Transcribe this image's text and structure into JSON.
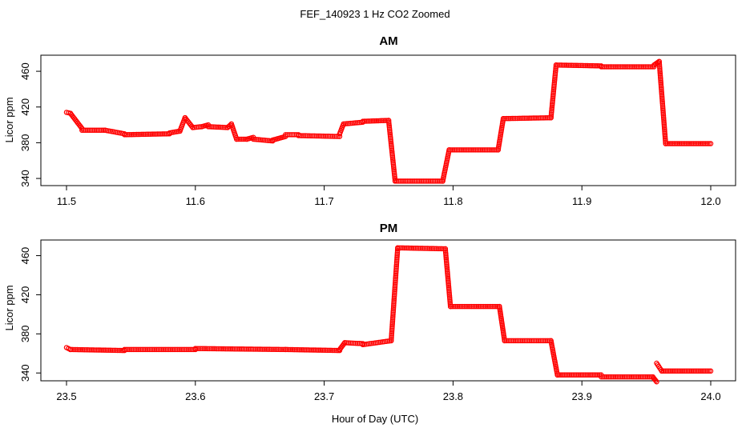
{
  "figure": {
    "title": "FEF_140923  1 Hz CO2 Zoomed",
    "xlabel": "Hour of Day (UTC)",
    "ylabel": "Licor ppm",
    "point_color": "#ff0000"
  },
  "chart_data": [
    {
      "type": "scatter",
      "title": "AM",
      "xlabel": "",
      "ylabel": "Licor ppm",
      "xlim": [
        11.5,
        12.0
      ],
      "ylim": [
        332,
        478
      ],
      "xticks": [
        "11.5",
        "11.6",
        "11.7",
        "11.8",
        "11.9",
        "12.0"
      ],
      "yticks": [
        "340",
        "380",
        "420",
        "460"
      ],
      "grid": false,
      "series": [
        {
          "color": "#ff0000",
          "segments": [
            {
              "x0": 11.5,
              "x1": 11.503,
              "y0": 414,
              "y1": 413
            },
            {
              "x0": 11.503,
              "x1": 11.512,
              "y0": 413,
              "y1": 396
            },
            {
              "x0": 11.512,
              "x1": 11.53,
              "y0": 394,
              "y1": 394
            },
            {
              "x0": 11.53,
              "x1": 11.545,
              "y0": 394,
              "y1": 390
            },
            {
              "x0": 11.545,
              "x1": 11.58,
              "y0": 389,
              "y1": 390
            },
            {
              "x0": 11.58,
              "x1": 11.588,
              "y0": 391,
              "y1": 393
            },
            {
              "x0": 11.588,
              "x1": 11.592,
              "y0": 393,
              "y1": 408
            },
            {
              "x0": 11.592,
              "x1": 11.598,
              "y0": 408,
              "y1": 397
            },
            {
              "x0": 11.598,
              "x1": 11.605,
              "y0": 397,
              "y1": 398
            },
            {
              "x0": 11.605,
              "x1": 11.61,
              "y0": 398,
              "y1": 400
            },
            {
              "x0": 11.61,
              "x1": 11.625,
              "y0": 398,
              "y1": 397
            },
            {
              "x0": 11.625,
              "x1": 11.628,
              "y0": 397,
              "y1": 401
            },
            {
              "x0": 11.628,
              "x1": 11.632,
              "y0": 401,
              "y1": 384
            },
            {
              "x0": 11.632,
              "x1": 11.64,
              "y0": 384,
              "y1": 384
            },
            {
              "x0": 11.64,
              "x1": 11.645,
              "y0": 384,
              "y1": 386
            },
            {
              "x0": 11.645,
              "x1": 11.66,
              "y0": 384,
              "y1": 382
            },
            {
              "x0": 11.66,
              "x1": 11.67,
              "y0": 383,
              "y1": 387
            },
            {
              "x0": 11.67,
              "x1": 11.68,
              "y0": 389,
              "y1": 389
            },
            {
              "x0": 11.68,
              "x1": 11.712,
              "y0": 388,
              "y1": 387
            },
            {
              "x0": 11.712,
              "x1": 11.715,
              "y0": 390,
              "y1": 401
            },
            {
              "x0": 11.715,
              "x1": 11.73,
              "y0": 401,
              "y1": 403
            },
            {
              "x0": 11.73,
              "x1": 11.75,
              "y0": 404,
              "y1": 405
            },
            {
              "x0": 11.75,
              "x1": 11.755,
              "y0": 405,
              "y1": 338
            },
            {
              "x0": 11.755,
              "x1": 11.792,
              "y0": 337,
              "y1": 337
            },
            {
              "x0": 11.792,
              "x1": 11.797,
              "y0": 337,
              "y1": 372
            },
            {
              "x0": 11.797,
              "x1": 11.835,
              "y0": 372,
              "y1": 372
            },
            {
              "x0": 11.835,
              "x1": 11.839,
              "y0": 372,
              "y1": 407
            },
            {
              "x0": 11.839,
              "x1": 11.876,
              "y0": 407,
              "y1": 408
            },
            {
              "x0": 11.876,
              "x1": 11.88,
              "y0": 408,
              "y1": 467
            },
            {
              "x0": 11.88,
              "x1": 11.915,
              "y0": 467,
              "y1": 466
            },
            {
              "x0": 11.915,
              "x1": 11.956,
              "y0": 465,
              "y1": 465
            },
            {
              "x0": 11.956,
              "x1": 11.96,
              "y0": 467,
              "y1": 471
            },
            {
              "x0": 11.96,
              "x1": 11.965,
              "y0": 471,
              "y1": 379
            },
            {
              "x0": 11.965,
              "x1": 12.0,
              "y0": 379,
              "y1": 379
            }
          ]
        }
      ]
    },
    {
      "type": "scatter",
      "title": "PM",
      "xlabel": "Hour of Day (UTC)",
      "ylabel": "Licor ppm",
      "xlim": [
        23.5,
        24.0
      ],
      "ylim": [
        332,
        476
      ],
      "xticks": [
        "23.5",
        "23.6",
        "23.7",
        "23.8",
        "23.9",
        "24.0"
      ],
      "yticks": [
        "340",
        "380",
        "420",
        "460"
      ],
      "grid": false,
      "series": [
        {
          "color": "#ff0000",
          "segments": [
            {
              "x0": 23.5,
              "x1": 23.503,
              "y0": 366,
              "y1": 364
            },
            {
              "x0": 23.503,
              "x1": 23.545,
              "y0": 364,
              "y1": 363
            },
            {
              "x0": 23.545,
              "x1": 23.6,
              "y0": 364,
              "y1": 364
            },
            {
              "x0": 23.6,
              "x1": 23.67,
              "y0": 365,
              "y1": 364
            },
            {
              "x0": 23.67,
              "x1": 23.712,
              "y0": 364,
              "y1": 363
            },
            {
              "x0": 23.712,
              "x1": 23.716,
              "y0": 364,
              "y1": 371
            },
            {
              "x0": 23.716,
              "x1": 23.73,
              "y0": 371,
              "y1": 370
            },
            {
              "x0": 23.73,
              "x1": 23.752,
              "y0": 369,
              "y1": 373
            },
            {
              "x0": 23.752,
              "x1": 23.757,
              "y0": 373,
              "y1": 467
            },
            {
              "x0": 23.757,
              "x1": 23.794,
              "y0": 468,
              "y1": 467
            },
            {
              "x0": 23.794,
              "x1": 23.798,
              "y0": 467,
              "y1": 408
            },
            {
              "x0": 23.798,
              "x1": 23.836,
              "y0": 408,
              "y1": 408
            },
            {
              "x0": 23.836,
              "x1": 23.84,
              "y0": 408,
              "y1": 373
            },
            {
              "x0": 23.84,
              "x1": 23.876,
              "y0": 373,
              "y1": 373
            },
            {
              "x0": 23.876,
              "x1": 23.881,
              "y0": 373,
              "y1": 338
            },
            {
              "x0": 23.881,
              "x1": 23.915,
              "y0": 338,
              "y1": 338
            },
            {
              "x0": 23.915,
              "x1": 23.955,
              "y0": 336,
              "y1": 336
            },
            {
              "x0": 23.955,
              "x1": 23.958,
              "y0": 336,
              "y1": 331
            },
            {
              "x0": 23.958,
              "x1": 23.962,
              "y0": 350,
              "y1": 342
            },
            {
              "x0": 23.962,
              "x1": 24.0,
              "y0": 342,
              "y1": 342
            }
          ]
        }
      ]
    }
  ]
}
